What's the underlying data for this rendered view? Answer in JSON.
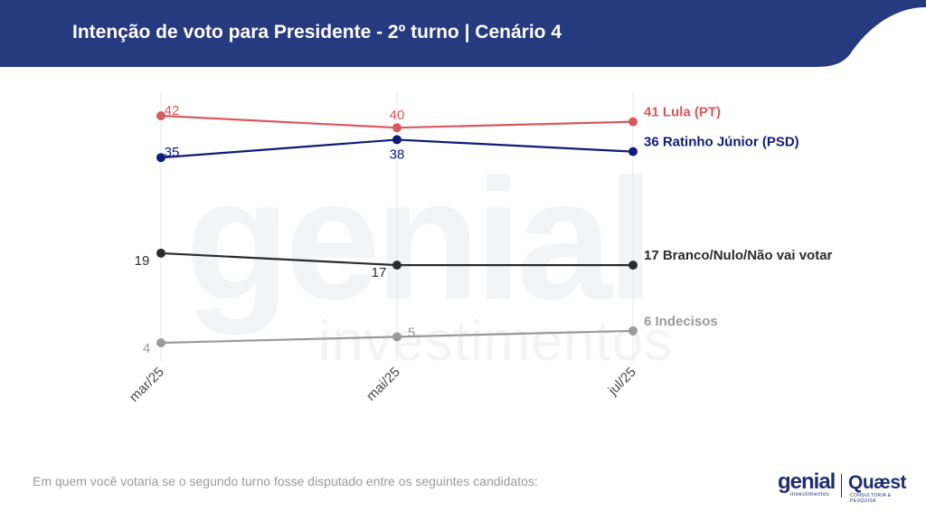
{
  "header": {
    "title": "Intenção de voto para Presidente - 2º turno | Cenário 4"
  },
  "footnote": "Em quem você votaria se o segundo turno fosse disputado entre os seguintes candidatos:",
  "logos": {
    "genial": "genial",
    "genial_sub": "investimentos",
    "quaest": "Quæst",
    "quaest_sub": "CONSULTORIA & PESQUISA"
  },
  "colors": {
    "header": "#263a80",
    "lula": "#d9595c",
    "ratinho": "#0f1a7a",
    "branco": "#2b2b2b",
    "indecisos": "#9a9a9a"
  },
  "chart_data": {
    "type": "line",
    "x": [
      "mar/25",
      "mai/25",
      "jul/25"
    ],
    "ylim": [
      0,
      45
    ],
    "grid": "vertical",
    "series": [
      {
        "name": "Lula (PT)",
        "label": "41 Lula (PT)",
        "values": [
          42,
          40,
          41
        ],
        "color": "#d9595c"
      },
      {
        "name": "Ratinho Júnior (PSD)",
        "label": "36 Ratinho Júnior (PSD)",
        "values": [
          35,
          38,
          36
        ],
        "color": "#0f1a7a"
      },
      {
        "name": "Branco/Nulo/Não vai votar",
        "label": "17 Branco/Nulo/Não vai votar",
        "values": [
          19,
          17,
          17
        ],
        "color": "#2b2b2b"
      },
      {
        "name": "Indecisos",
        "label": "6 Indecisos",
        "values": [
          4,
          5,
          6
        ],
        "color": "#9a9a9a"
      }
    ]
  }
}
